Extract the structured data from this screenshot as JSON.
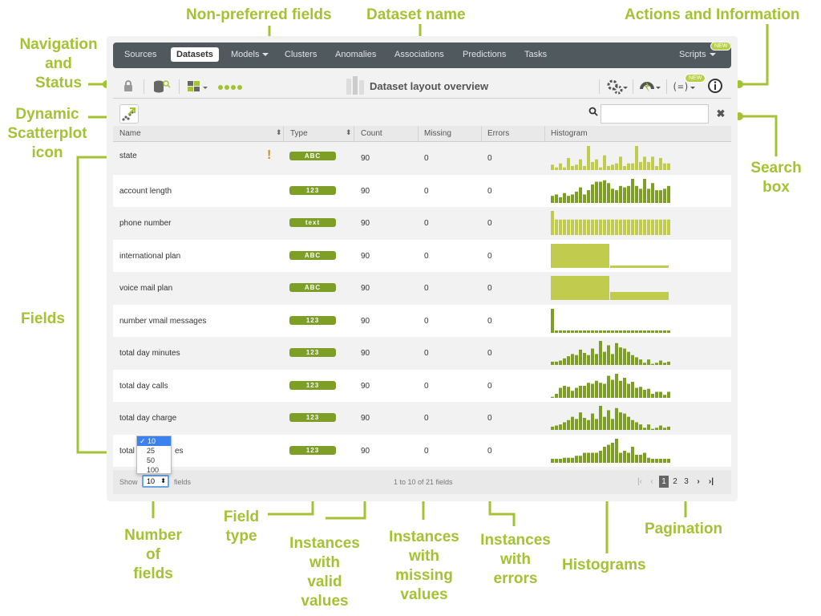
{
  "callouts": {
    "non_preferred": "Non-preferred fields",
    "dataset_name": "Dataset name",
    "actions_info": "Actions and Information",
    "nav_status": [
      "Navigation",
      "and",
      "Status"
    ],
    "scatterplot": [
      "Dynamic",
      "Scatterplot",
      "icon"
    ],
    "fields": "Fields",
    "search": [
      "Search",
      "box"
    ],
    "number_fields": [
      "Number",
      "of",
      "fields"
    ],
    "field_type": [
      "Field",
      "type"
    ],
    "valid_values": [
      "Instances",
      "with",
      "valid",
      "values"
    ],
    "missing_values": [
      "Instances",
      "with",
      "missing",
      "values"
    ],
    "errors": [
      "Instances",
      "with",
      "errors"
    ],
    "histograms": "Histograms",
    "pagination": "Pagination"
  },
  "nav": {
    "items": [
      "Sources",
      "Datasets",
      "Models",
      "Clusters",
      "Anomalies",
      "Associations",
      "Predictions",
      "Tasks"
    ],
    "scripts": "Scripts",
    "new_badge": "NEW"
  },
  "toolbar": {
    "title": "Dataset layout overview",
    "new_badge": "NEW"
  },
  "search": {
    "placeholder": ""
  },
  "table": {
    "headers": [
      "Name",
      "Type",
      "Count",
      "Missing",
      "Errors",
      "Histogram"
    ],
    "rows": [
      {
        "name": "state",
        "type": "ABC",
        "count": "90",
        "missing": "0",
        "errors": "0",
        "warn": "!",
        "hist": [
          4,
          2,
          5,
          2,
          9,
          3,
          4,
          8,
          3,
          18,
          6,
          8,
          2,
          11,
          3,
          4,
          5,
          10,
          3,
          5,
          5,
          18,
          6,
          10,
          6,
          10,
          3,
          9,
          5,
          5
        ]
      },
      {
        "name": "account length",
        "type": "123",
        "count": "90",
        "missing": "0",
        "errors": "0",
        "hist": [
          5,
          6,
          4,
          7,
          5,
          6,
          8,
          11,
          6,
          9,
          13,
          15,
          15,
          16,
          14,
          10,
          9,
          12,
          11,
          12,
          17,
          12,
          10,
          17,
          10,
          14,
          9,
          9,
          10,
          12
        ]
      },
      {
        "name": "phone number",
        "type": "text",
        "count": "90",
        "missing": "0",
        "errors": "0",
        "hist": [
          28,
          18,
          18,
          18,
          18,
          18,
          18,
          18,
          18,
          18,
          18,
          18,
          18,
          18,
          18,
          18,
          18,
          18,
          18,
          18,
          18,
          18,
          18,
          18,
          18,
          18,
          18,
          18,
          18,
          18
        ]
      },
      {
        "name": "international plan",
        "type": "ABC",
        "count": "90",
        "missing": "0",
        "errors": "0",
        "hist2": [
          30,
          3
        ]
      },
      {
        "name": "voice mail plan",
        "type": "ABC",
        "count": "90",
        "missing": "0",
        "errors": "0",
        "hist2": [
          30,
          10
        ]
      },
      {
        "name": "number vmail messages",
        "type": "123",
        "count": "90",
        "missing": "0",
        "errors": "0",
        "hist": [
          30,
          3,
          3,
          3,
          3,
          3,
          3,
          3,
          3,
          3,
          3,
          3,
          3,
          3,
          3,
          3,
          3,
          3,
          3,
          3,
          3,
          3,
          3,
          3,
          3,
          3,
          3,
          3,
          3,
          3
        ]
      },
      {
        "name": "total day minutes",
        "type": "123",
        "count": "90",
        "missing": "0",
        "errors": "0",
        "hist": [
          3,
          3,
          4,
          6,
          8,
          10,
          9,
          14,
          11,
          9,
          15,
          10,
          22,
          12,
          18,
          10,
          20,
          16,
          15,
          12,
          9,
          7,
          5,
          2,
          5,
          1,
          2,
          4,
          2,
          3
        ]
      },
      {
        "name": "total day calls",
        "type": "123",
        "count": "90",
        "missing": "0",
        "errors": "0",
        "hist": [
          1,
          4,
          10,
          12,
          11,
          7,
          10,
          12,
          12,
          15,
          14,
          17,
          15,
          14,
          22,
          18,
          24,
          17,
          20,
          14,
          16,
          10,
          11,
          8,
          9,
          4,
          6,
          6,
          3,
          6
        ]
      },
      {
        "name": "total day charge",
        "type": "123",
        "count": "90",
        "missing": "0",
        "errors": "0",
        "hist": [
          3,
          4,
          5,
          7,
          9,
          12,
          10,
          16,
          11,
          9,
          15,
          10,
          22,
          12,
          18,
          10,
          20,
          16,
          15,
          12,
          9,
          7,
          5,
          2,
          5,
          1,
          2,
          4,
          2,
          3
        ]
      },
      {
        "name": "total",
        "name_suffix": "es",
        "type": "123",
        "count": "90",
        "missing": "0",
        "errors": "0",
        "hist": [
          4,
          4,
          4,
          5,
          5,
          5,
          7,
          7,
          10,
          10,
          10,
          10,
          12,
          16,
          18,
          20,
          24,
          10,
          12,
          10,
          16,
          8,
          8,
          10,
          5,
          4,
          4,
          4,
          4,
          4
        ]
      }
    ]
  },
  "footer": {
    "show_label": "Show",
    "show_value": "10",
    "fields_label": "fields",
    "range_text": "1 to 10 of 21 fields",
    "pages": [
      "1",
      "2",
      "3"
    ],
    "dropdown_options": [
      "10",
      "25",
      "50",
      "100"
    ]
  },
  "colors": {
    "accent": "#a3c234",
    "nav_bg": "#50595e",
    "badge": "#7e9f26",
    "hist_light": "#c1cc4e",
    "hist_dark": "#7e9f26"
  }
}
